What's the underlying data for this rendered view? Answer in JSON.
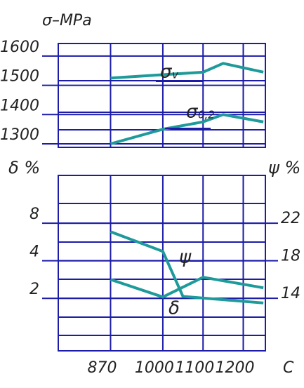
{
  "chart_data": [
    {
      "type": "line",
      "title": "σ–MPa",
      "xlim": [
        740,
        1255
      ],
      "ylim": [
        1288,
        1643
      ],
      "yticks": [
        1300,
        1400,
        1500,
        1600
      ],
      "series": [
        {
          "name": "σ",
          "name_sub": "v",
          "color": "#1f9a9a",
          "x": [
            870,
            1100,
            1150,
            1250
          ],
          "values": [
            1525,
            1545,
            1575,
            1545
          ]
        },
        {
          "name": "σ",
          "name_sub": "0,2",
          "color": "#1f9a9a",
          "x": [
            870,
            1000,
            1100,
            1150,
            1250
          ],
          "values": [
            1300,
            1350,
            1375,
            1400,
            1375
          ]
        }
      ]
    },
    {
      "type": "line",
      "ylabel": "δ %",
      "y2label": "ψ %",
      "xlabel": "C",
      "xlim": [
        740,
        1255
      ],
      "xticks": [
        870,
        1000,
        1100,
        1200
      ],
      "ylim": [
        0.76,
        19.3
      ],
      "yticks": [
        2,
        4,
        8
      ],
      "ylog": true,
      "y2lim": [
        8.4,
        27.1
      ],
      "y2ticks": [
        14,
        18,
        22
      ],
      "series": [
        {
          "name": "ψ",
          "color": "#1f9a9a",
          "axis": "y2",
          "x": [
            870,
            1000,
            1050,
            1250
          ],
          "values": [
            21.1,
            19,
            14.2,
            13.5
          ]
        },
        {
          "name": "δ",
          "color": "#1f9a9a",
          "x": [
            870,
            1000,
            1100,
            1250
          ],
          "values": [
            2.83,
            2.05,
            2.95,
            2.43
          ]
        }
      ]
    }
  ]
}
